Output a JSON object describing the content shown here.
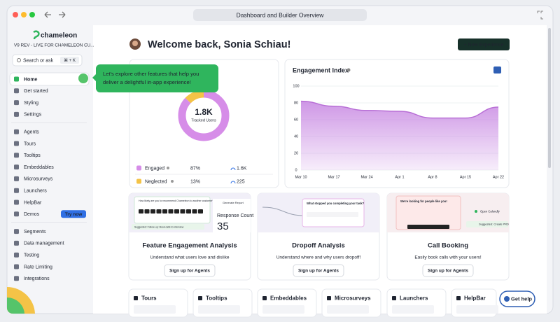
{
  "browser": {
    "url": "Dashboard and Builder Overview"
  },
  "sidebar": {
    "brand": "chameleon",
    "workspace": "V9 REV - LIVE FOR CHAMELEON CU...",
    "search": "Search or ask",
    "shortcut": "⌘ + K",
    "nav": [
      [
        "Home",
        "Get started",
        "Styling",
        "Settings"
      ],
      [
        "Agents",
        "Tours",
        "Tooltips",
        "Embeddables",
        "Microsurveys",
        "Launchers",
        "HelpBar",
        "Demos"
      ],
      [
        "Segments",
        "Data management",
        "Testing",
        "Rate Limiting",
        "Integrations"
      ]
    ],
    "demo_badge": "Try now"
  },
  "main": {
    "greeting": "Welcome back, Sonia Schiau!",
    "new_button": "+ New Experience",
    "tooltip": [
      "Let's explore other features that help you",
      "deliver a delightful in-app experience!"
    ]
  },
  "users": {
    "total": "1.8K",
    "total_label": "Tracked Users",
    "rows": [
      {
        "name": "Engaged",
        "percent": 87,
        "percent_label": "87%",
        "count": "1.6K",
        "color": "#d68de8"
      },
      {
        "name": "Neglected",
        "percent": 13,
        "percent_label": "13%",
        "count": "225",
        "color": "#f4c347"
      }
    ]
  },
  "engagement": {
    "title": "Engagement Index",
    "x": [
      "Mar 10",
      "Mar 17",
      "Mar 24",
      "Apr 1",
      "Apr 8",
      "Apr 15",
      "Apr 22"
    ],
    "values": [
      82,
      76,
      71,
      70,
      62,
      62,
      75
    ],
    "ylim": [
      0,
      100
    ],
    "yticks": [
      0,
      20,
      40,
      60,
      80,
      100
    ],
    "color": "#c98be3"
  },
  "features": [
    {
      "title": "Feature Engagement Analysis",
      "description": "Understand what users love and dislike",
      "button": "Sign up for Agents",
      "preview": [
        "How likely are you to recommend Chameleon to another customer?",
        "Generate Report",
        "Response Count",
        "35",
        "Suggested: Follow up: Book calls to interview"
      ]
    },
    {
      "title": "Dropoff Analysis",
      "description": "Understand where and why users dropoff!",
      "button": "Sign up for Agents",
      "preview": [
        "What stopped you completing your task?"
      ]
    },
    {
      "title": "Call Booking",
      "description": "Easily book calls with your users!",
      "button": "Sign up for Agents",
      "preview": [
        "We're looking for people like you!",
        "Open Calendly",
        "Suggested: Create PRD"
      ]
    }
  ],
  "modules": [
    "Tours",
    "Tooltips",
    "Embeddables",
    "Microsurveys",
    "Launchers",
    "HelpBar"
  ],
  "help": "Get help"
}
